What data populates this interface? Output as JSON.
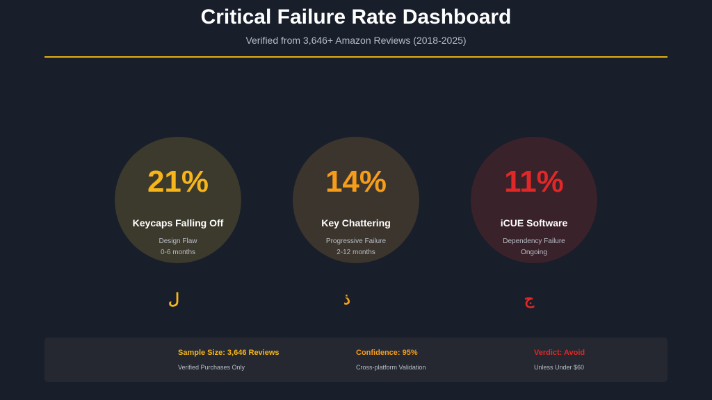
{
  "header": {
    "title": "Critical Failure Rate Dashboard",
    "subtitle": "Verified from 3,646+ Amazon Reviews (2018-2025)",
    "divider_color": "#e8b015"
  },
  "metrics": [
    {
      "value": "21%",
      "label": "Keycaps Falling Off",
      "detail": "Design Flaw",
      "timeframe": "0-6 months",
      "color": "#f5b51b",
      "circle_color": "#3c3a2d",
      "glyph": "ل"
    },
    {
      "value": "14%",
      "label": "Key Chattering",
      "detail": "Progressive Failure",
      "timeframe": "2-12 months",
      "color": "#f59c1b",
      "circle_color": "#3c352d",
      "glyph": "ذ"
    },
    {
      "value": "11%",
      "label": "iCUE Software",
      "detail": "Dependency Failure",
      "timeframe": "Ongoing",
      "color": "#e02828",
      "circle_color": "#3a222a",
      "glyph": "ج"
    }
  ],
  "footer": {
    "stats": [
      {
        "title": "Sample Size: 3,646 Reviews",
        "note": "Verified Purchases Only",
        "color": "#f5b51b"
      },
      {
        "title": "Confidence: 95%",
        "note": "Cross-platform Validation",
        "color": "#f59c1b"
      },
      {
        "title": "Verdict: Avoid",
        "note": "Unless Under $60",
        "color": "#e02828"
      }
    ]
  }
}
